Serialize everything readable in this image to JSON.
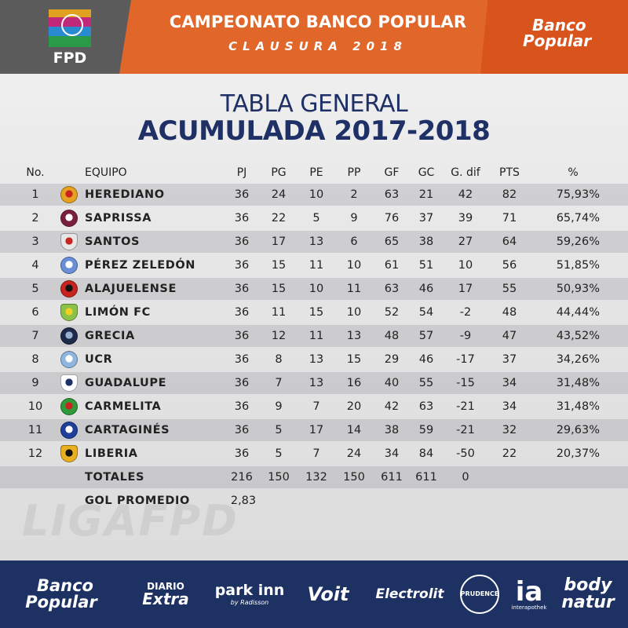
{
  "header": {
    "logo_text": "FPD",
    "title": "CAMPEONATO BANCO POPULAR",
    "subtitle": "CLAUSURA 2018",
    "sponsor_logo_line1": "Banco",
    "sponsor_logo_line2": "Popular"
  },
  "titles": {
    "line1": "TABLA GENERAL",
    "line2": "ACUMULADA 2017-2018"
  },
  "columns": [
    "No.",
    "EQUIPO",
    "PJ",
    "PG",
    "PE",
    "PP",
    "GF",
    "GC",
    "G. dif",
    "PTS",
    "%"
  ],
  "rows": [
    {
      "no": "1",
      "team": "HEREDIANO",
      "pj": "36",
      "pg": "24",
      "pe": "10",
      "pp": "2",
      "gf": "63",
      "gc": "21",
      "gd": "42",
      "pts": "82",
      "pct": "75,93%",
      "badge_color": "#e8a020",
      "badge_color2": "#c8231e"
    },
    {
      "no": "2",
      "team": "SAPRISSA",
      "pj": "36",
      "pg": "22",
      "pe": "5",
      "pp": "9",
      "gf": "76",
      "gc": "37",
      "gd": "39",
      "pts": "71",
      "pct": "65,74%",
      "badge_color": "#7a1f3d",
      "badge_color2": "#ffffff"
    },
    {
      "no": "3",
      "team": "SANTOS",
      "pj": "36",
      "pg": "17",
      "pe": "13",
      "pp": "6",
      "gf": "65",
      "gc": "38",
      "gd": "27",
      "pts": "64",
      "pct": "59,26%",
      "badge_color": "#e6e6e6",
      "badge_color2": "#c8231e"
    },
    {
      "no": "4",
      "team": "PÉREZ ZELEDÓN",
      "pj": "36",
      "pg": "15",
      "pe": "11",
      "pp": "10",
      "gf": "61",
      "gc": "51",
      "gd": "10",
      "pts": "56",
      "pct": "51,85%",
      "badge_color": "#6a8fd8",
      "badge_color2": "#ffffff"
    },
    {
      "no": "5",
      "team": "ALAJUELENSE",
      "pj": "36",
      "pg": "15",
      "pe": "10",
      "pp": "11",
      "gf": "63",
      "gc": "46",
      "gd": "17",
      "pts": "55",
      "pct": "50,93%",
      "badge_color": "#c8231e",
      "badge_color2": "#111111"
    },
    {
      "no": "6",
      "team": "LIMÓN FC",
      "pj": "36",
      "pg": "11",
      "pe": "15",
      "pp": "10",
      "gf": "52",
      "gc": "54",
      "gd": "-2",
      "pts": "48",
      "pct": "44,44%",
      "badge_color": "#8bc34a",
      "badge_color2": "#f0d020"
    },
    {
      "no": "7",
      "team": "GRECIA",
      "pj": "36",
      "pg": "12",
      "pe": "11",
      "pp": "13",
      "gf": "48",
      "gc": "57",
      "gd": "-9",
      "pts": "47",
      "pct": "43,52%",
      "badge_color": "#1d2a4a",
      "badge_color2": "#9ab0d0"
    },
    {
      "no": "8",
      "team": "UCR",
      "pj": "36",
      "pg": "8",
      "pe": "13",
      "pp": "15",
      "gf": "29",
      "gc": "46",
      "gd": "-17",
      "pts": "37",
      "pct": "34,26%",
      "badge_color": "#8fb6de",
      "badge_color2": "#ffffff"
    },
    {
      "no": "9",
      "team": "GUADALUPE",
      "pj": "36",
      "pg": "7",
      "pe": "13",
      "pp": "16",
      "gf": "40",
      "gc": "55",
      "gd": "-15",
      "pts": "34",
      "pct": "31,48%",
      "badge_color": "#ffffff",
      "badge_color2": "#1f3066"
    },
    {
      "no": "10",
      "team": "CARMELITA",
      "pj": "36",
      "pg": "9",
      "pe": "7",
      "pp": "20",
      "gf": "42",
      "gc": "63",
      "gd": "-21",
      "pts": "34",
      "pct": "31,48%",
      "badge_color": "#2e9a3a",
      "badge_color2": "#c8231e"
    },
    {
      "no": "11",
      "team": "CARTAGINÉS",
      "pj": "36",
      "pg": "5",
      "pe": "17",
      "pp": "14",
      "gf": "38",
      "gc": "59",
      "gd": "-21",
      "pts": "32",
      "pct": "29,63%",
      "badge_color": "#1f3f9a",
      "badge_color2": "#ffffff"
    },
    {
      "no": "12",
      "team": "LIBERIA",
      "pj": "36",
      "pg": "5",
      "pe": "7",
      "pp": "24",
      "gf": "34",
      "gc": "84",
      "gd": "-50",
      "pts": "22",
      "pct": "20,37%",
      "badge_color": "#e8b020",
      "badge_color2": "#111111"
    }
  ],
  "totals": {
    "label": "TOTALES",
    "pj": "216",
    "pg": "150",
    "pe": "132",
    "pp": "150",
    "gf": "611",
    "gc": "611",
    "gd": "0"
  },
  "average": {
    "label": "GOL PROMEDIO",
    "value": "2,83"
  },
  "watermark": "LIGAFPD",
  "sponsors": [
    {
      "line1": "Banco",
      "line2": "Popular"
    },
    {
      "line1": "DIARIO",
      "line2": "Extra"
    },
    {
      "line1": "park inn",
      "line2": "by Radisson"
    },
    {
      "line1": "Voit",
      "line2": ""
    },
    {
      "line1": "Electrolit",
      "line2": ""
    },
    {
      "line1": "PRUDENCE",
      "line2": ""
    },
    {
      "line1": "ia",
      "line2": "interapothek"
    },
    {
      "line1": "body",
      "line2": "natur"
    }
  ],
  "colors": {
    "navy": "#1f3066",
    "orange": "#e0662a",
    "gray_header": "#5b5b5b",
    "footer": "#1d3163"
  }
}
